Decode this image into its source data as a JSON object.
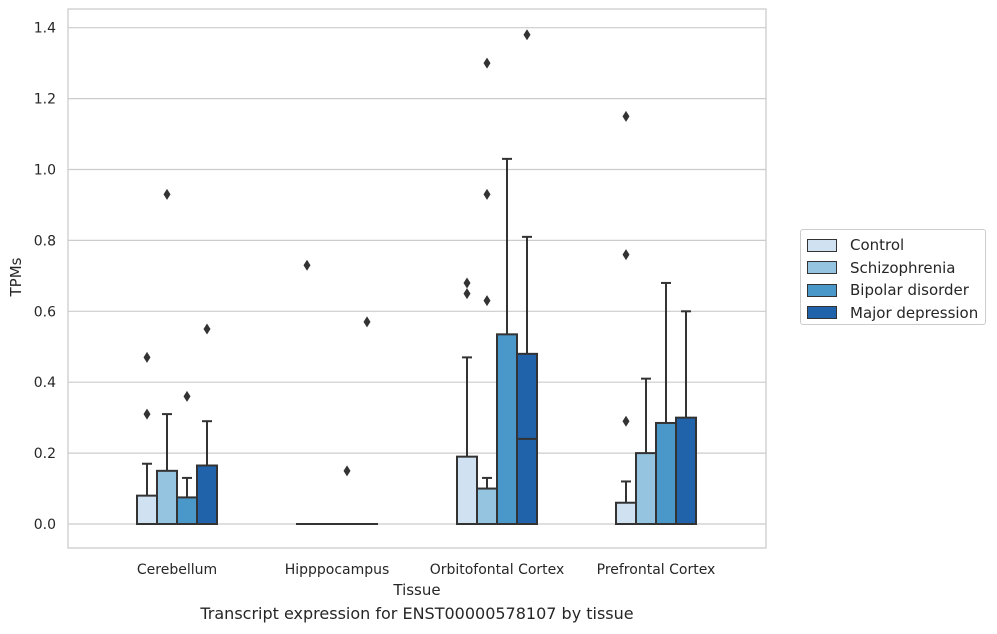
{
  "chart_data": {
    "type": "box",
    "title": "",
    "caption": "Transcript expression for ENST00000578107 by tissue",
    "xlabel": "Tissue",
    "ylabel": "TPMs",
    "ylim": [
      -0.065,
      1.45
    ],
    "yticks": [
      "0.0",
      "0.2",
      "0.4",
      "0.6",
      "0.8",
      "1.0",
      "1.2",
      "1.4"
    ],
    "categories": [
      "Cerebellum",
      "Hipppocampus",
      "Orbitofontal Cortex",
      "Prefrontal Cortex"
    ],
    "grid": true,
    "legend_position": "right",
    "series": [
      {
        "name": "Control",
        "color": "#d0e1f2",
        "boxes": [
          {
            "q1": 0,
            "median": 0,
            "q3": 0.08,
            "whisker_low": 0,
            "whisker_high": 0.17,
            "outliers": [
              0.31,
              0.47
            ]
          },
          {
            "q1": 0,
            "median": 0,
            "q3": 0,
            "whisker_low": 0,
            "whisker_high": 0,
            "outliers": [
              0.73
            ]
          },
          {
            "q1": 0,
            "median": 0,
            "q3": 0.19,
            "whisker_low": 0,
            "whisker_high": 0.47,
            "outliers": [
              0.65,
              0.68
            ]
          },
          {
            "q1": 0,
            "median": 0,
            "q3": 0.06,
            "whisker_low": 0,
            "whisker_high": 0.12,
            "outliers": [
              0.29,
              0.76,
              1.15
            ]
          }
        ]
      },
      {
        "name": "Schizophrenia",
        "color": "#94c4df",
        "boxes": [
          {
            "q1": 0,
            "median": 0,
            "q3": 0.15,
            "whisker_low": 0,
            "whisker_high": 0.31,
            "outliers": [
              0.93
            ]
          },
          {
            "q1": 0,
            "median": 0,
            "q3": 0,
            "whisker_low": 0,
            "whisker_high": 0,
            "outliers": []
          },
          {
            "q1": 0,
            "median": 0,
            "q3": 0.1,
            "whisker_low": 0,
            "whisker_high": 0.13,
            "outliers": [
              0.63,
              0.93,
              1.3
            ]
          },
          {
            "q1": 0,
            "median": 0,
            "q3": 0.2,
            "whisker_low": 0,
            "whisker_high": 0.41,
            "outliers": []
          }
        ]
      },
      {
        "name": "Bipolar disorder",
        "color": "#4a98c9",
        "boxes": [
          {
            "q1": 0,
            "median": 0,
            "q3": 0.075,
            "whisker_low": 0,
            "whisker_high": 0.13,
            "outliers": [
              0.36
            ]
          },
          {
            "q1": 0,
            "median": 0,
            "q3": 0,
            "whisker_low": 0,
            "whisker_high": 0,
            "outliers": [
              0.15
            ]
          },
          {
            "q1": 0,
            "median": 0,
            "q3": 0.535,
            "whisker_low": 0,
            "whisker_high": 1.03,
            "outliers": []
          },
          {
            "q1": 0,
            "median": 0,
            "q3": 0.285,
            "whisker_low": 0,
            "whisker_high": 0.68,
            "outliers": []
          }
        ]
      },
      {
        "name": "Major depression",
        "color": "#2163aa",
        "boxes": [
          {
            "q1": 0,
            "median": 0,
            "q3": 0.165,
            "whisker_low": 0,
            "whisker_high": 0.29,
            "outliers": [
              0.55
            ]
          },
          {
            "q1": 0,
            "median": 0,
            "q3": 0,
            "whisker_low": 0,
            "whisker_high": 0,
            "outliers": [
              0.57
            ]
          },
          {
            "q1": 0,
            "median": 0.24,
            "q3": 0.48,
            "whisker_low": 0,
            "whisker_high": 0.81,
            "outliers": [
              1.38
            ]
          },
          {
            "q1": 0,
            "median": 0,
            "q3": 0.3,
            "whisker_low": 0,
            "whisker_high": 0.6,
            "outliers": []
          }
        ]
      }
    ]
  }
}
